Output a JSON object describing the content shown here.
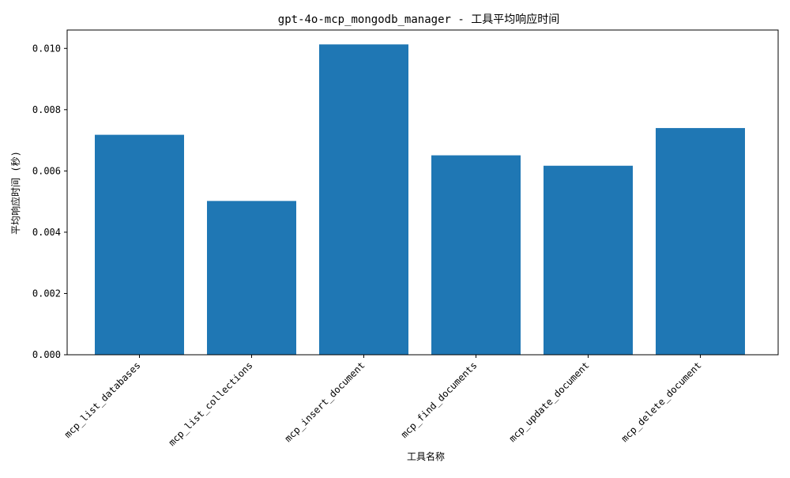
{
  "chart_data": {
    "type": "bar",
    "title": "gpt-4o-mcp_mongodb_manager - 工具平均响应时间",
    "xlabel": "工具名称",
    "ylabel": "平均响应时间 (秒)",
    "categories": [
      "mcp_list_databases",
      "mcp_list_collections",
      "mcp_insert_document",
      "mcp_find_documents",
      "mcp_update_document",
      "mcp_delete_document"
    ],
    "values": [
      0.00718,
      0.00502,
      0.01013,
      0.00651,
      0.00617,
      0.0074
    ],
    "ylim": [
      0,
      0.0106
    ],
    "yticks": [
      "0.000",
      "0.002",
      "0.004",
      "0.006",
      "0.008",
      "0.010"
    ],
    "bar_color": "#1f77b4",
    "grid": false,
    "legend": "none"
  }
}
